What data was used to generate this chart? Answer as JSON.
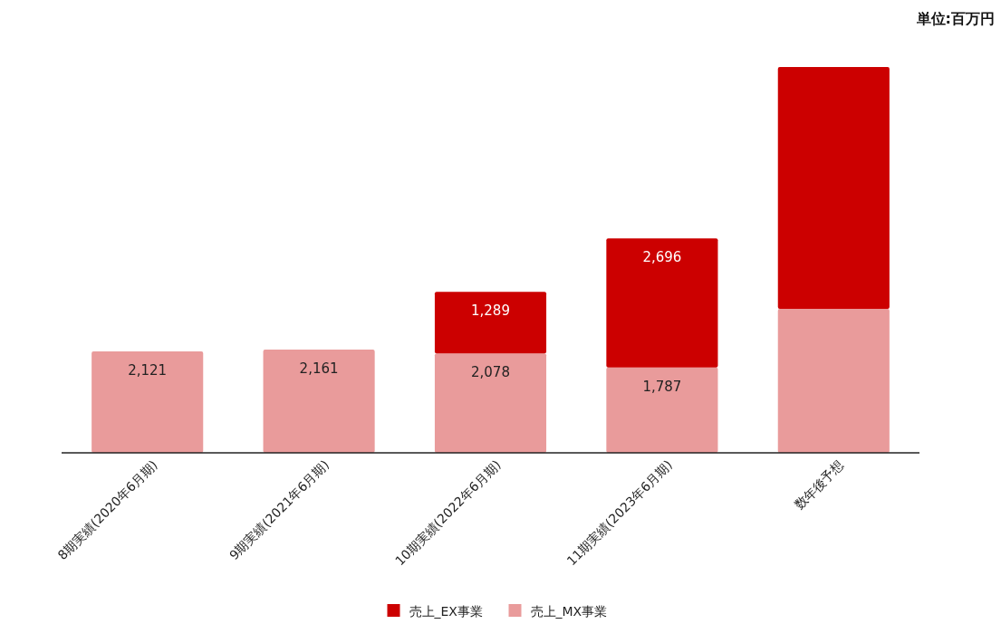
{
  "chart_data": {
    "type": "bar",
    "stacked": true,
    "legend": "bottom",
    "annotations": [
      "単位:百万円"
    ],
    "categories": [
      "8期実績(2020年6月期)",
      "9期実績(2021年6月期)",
      "10期実績(2022年6月期)",
      "11期実績(2023年6月期)",
      "数年後予想"
    ],
    "series": [
      {
        "name": "売上_MX事業",
        "color": "#e99b9b",
        "values": [
          2121,
          2161,
          2078,
          1787,
          3010
        ],
        "value_labels": [
          "2,121",
          "2,161",
          "2,078",
          "1,787",
          null
        ]
      },
      {
        "name": "売上_EX事業",
        "color": "#cc0000",
        "values": [
          null,
          null,
          1289,
          2696,
          5060
        ],
        "value_labels": [
          null,
          null,
          "1,289",
          "2,696",
          null
        ]
      }
    ]
  }
}
